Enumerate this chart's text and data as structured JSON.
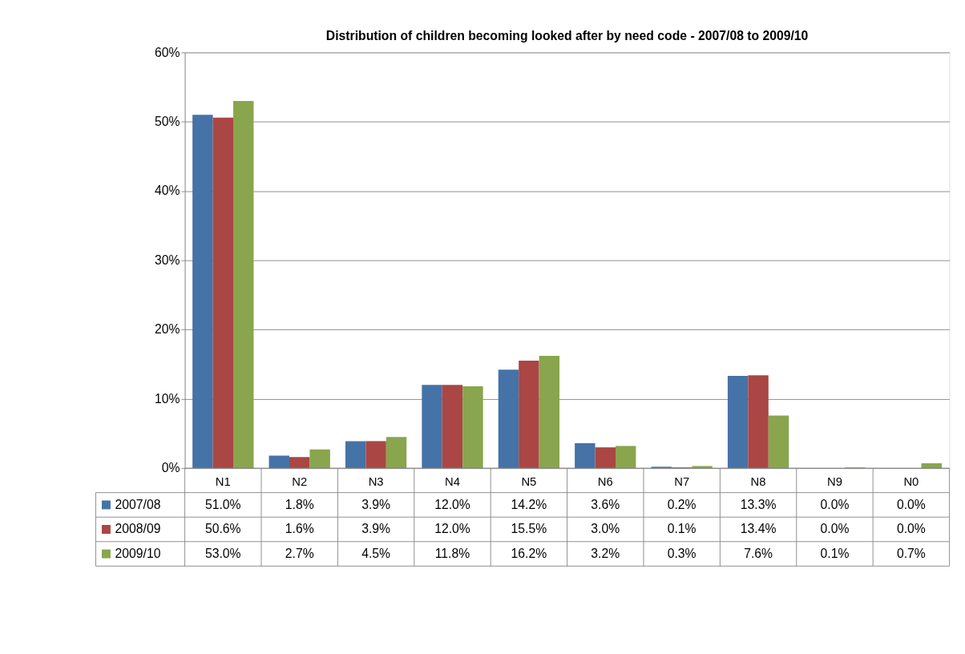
{
  "chart_data": {
    "type": "bar",
    "title": "Distribution of children becoming looked after by need code - 2007/08 to 2009/10",
    "categories": [
      "N1",
      "N2",
      "N3",
      "N4",
      "N5",
      "N6",
      "N7",
      "N8",
      "N9",
      "N0"
    ],
    "series": [
      {
        "name": "2007/08",
        "color": "#4572a7",
        "values": [
          51.0,
          1.8,
          3.9,
          12.0,
          14.2,
          3.6,
          0.2,
          13.3,
          0.0,
          0.0
        ],
        "value_labels": [
          "51.0%",
          "1.8%",
          "3.9%",
          "12.0%",
          "14.2%",
          "3.6%",
          "0.2%",
          "13.3%",
          "0.0%",
          "0.0%"
        ]
      },
      {
        "name": "2008/09",
        "color": "#aa4643",
        "values": [
          50.6,
          1.6,
          3.9,
          12.0,
          15.5,
          3.0,
          0.1,
          13.4,
          0.0,
          0.0
        ],
        "value_labels": [
          "50.6%",
          "1.6%",
          "3.9%",
          "12.0%",
          "15.5%",
          "3.0%",
          "0.1%",
          "13.4%",
          "0.0%",
          "0.0%"
        ]
      },
      {
        "name": "2009/10",
        "color": "#89a54e",
        "values": [
          53.0,
          2.7,
          4.5,
          11.8,
          16.2,
          3.2,
          0.3,
          7.6,
          0.1,
          0.7
        ],
        "value_labels": [
          "53.0%",
          "2.7%",
          "4.5%",
          "11.8%",
          "16.2%",
          "3.2%",
          "0.3%",
          "7.6%",
          "0.1%",
          "0.7%"
        ]
      }
    ],
    "ylim": [
      0,
      60
    ],
    "yticks": [
      {
        "value": 0,
        "label": "0%"
      },
      {
        "value": 10,
        "label": "10%"
      },
      {
        "value": 20,
        "label": "20%"
      },
      {
        "value": 30,
        "label": "30%"
      },
      {
        "value": 40,
        "label": "40%"
      },
      {
        "value": 50,
        "label": "50%"
      },
      {
        "value": 60,
        "label": "60%"
      }
    ],
    "grid": "y",
    "legend": "bottom"
  }
}
